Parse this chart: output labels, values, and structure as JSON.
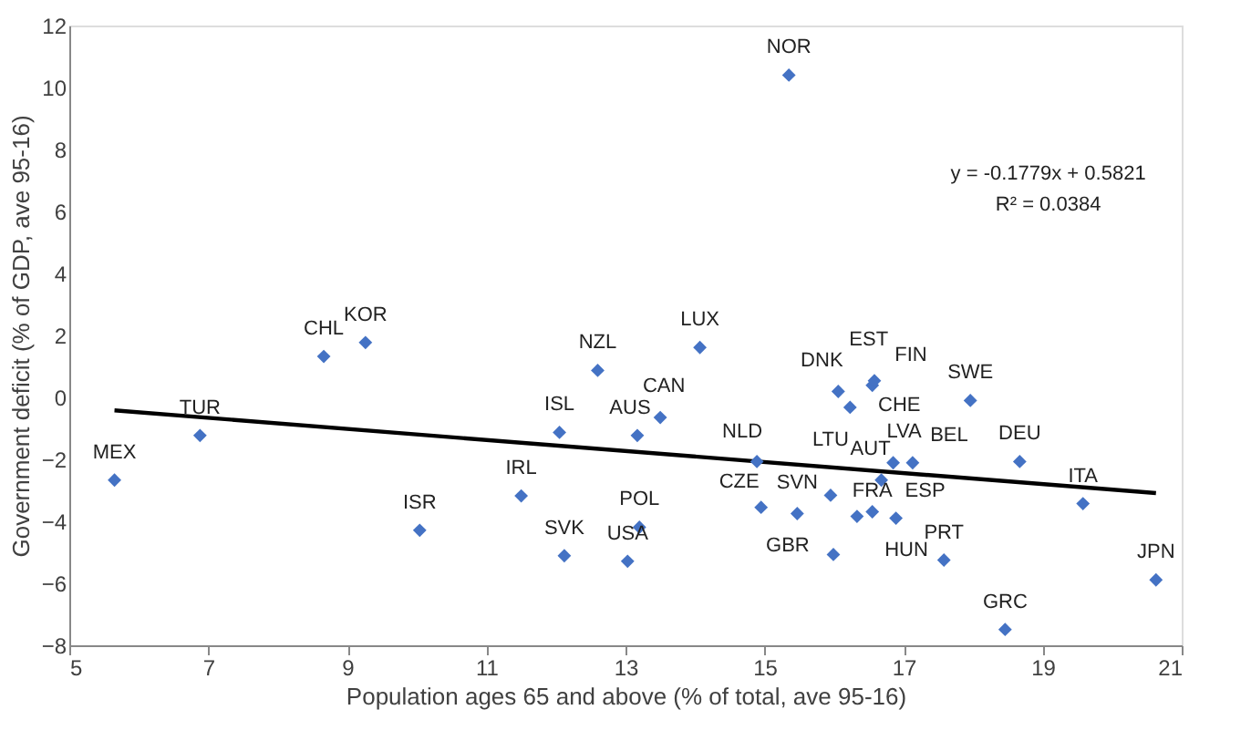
{
  "chart_data": {
    "type": "scatter",
    "xlabel": "Population ages 65 and above (% of total, ave 95-16)",
    "ylabel": "Government deficit (% of GDP, ave 95-16)",
    "xlim": [
      5,
      21
    ],
    "xticks": [
      5,
      7,
      9,
      11,
      13,
      15,
      17,
      19,
      21
    ],
    "ylim": [
      -8,
      12
    ],
    "yticks": [
      -8,
      -6,
      -4,
      -2,
      0,
      2,
      4,
      6,
      8,
      10,
      12
    ],
    "grid": false,
    "series": [
      {
        "type": "scatter",
        "color": "#4472c4",
        "marker": "diamond",
        "x": [
          5.65,
          6.88,
          8.66,
          9.26,
          10.04,
          11.5,
          12.05,
          12.6,
          12.12,
          13.03,
          13.17,
          13.2,
          14.07,
          13.5,
          14.89,
          14.95,
          15.47,
          15.95,
          15.99,
          16.33,
          16.55,
          16.06,
          16.23,
          16.55,
          16.58,
          17.96,
          16.85,
          16.68,
          17.13,
          16.89,
          17.58,
          18.46,
          18.67,
          19.58,
          20.63,
          15.35
        ],
        "values": [
          -2.67,
          -1.23,
          1.32,
          1.77,
          -4.29,
          -3.18,
          -1.13,
          0.87,
          -5.11,
          -5.29,
          -1.23,
          -4.19,
          1.61,
          -0.65,
          -2.07,
          -3.55,
          -3.75,
          -3.16,
          -5.07,
          -3.84,
          -3.69,
          0.19,
          -0.32,
          0.39,
          0.54,
          -0.1,
          -2.11,
          -2.67,
          -2.11,
          -3.9,
          -5.25,
          -7.49,
          -2.07,
          -3.43,
          -5.89,
          10.4
        ]
      },
      {
        "type": "line",
        "color": "#000000",
        "marker": "none",
        "line_style": "solid",
        "x": [
          5.65,
          20.63
        ],
        "values": [
          -0.42,
          -3.09
        ]
      }
    ],
    "annotations": [
      {
        "text": "MEX",
        "x": 5.65,
        "y": -2.67
      },
      {
        "text": "TUR",
        "x": 6.88,
        "y": -1.23
      },
      {
        "text": "CHL",
        "x": 8.66,
        "y": 1.32
      },
      {
        "text": "KOR",
        "x": 9.26,
        "y": 1.77
      },
      {
        "text": "ISR",
        "x": 10.04,
        "y": -4.29
      },
      {
        "text": "IRL",
        "x": 11.5,
        "y": -3.18
      },
      {
        "text": "ISL",
        "x": 12.05,
        "y": -1.13
      },
      {
        "text": "NZL",
        "x": 12.6,
        "y": 0.87
      },
      {
        "text": "SVK",
        "x": 12.12,
        "y": -5.11
      },
      {
        "text": "USA",
        "x": 13.03,
        "y": -5.29
      },
      {
        "text": "AUS",
        "x": 13.17,
        "y": -1.23
      },
      {
        "text": "POL",
        "x": 13.2,
        "y": -4.19
      },
      {
        "text": "LUX",
        "x": 14.07,
        "y": 1.61
      },
      {
        "text": "CAN",
        "x": 13.5,
        "y": -0.65
      },
      {
        "text": "NLD",
        "x": 14.89,
        "y": -2.07
      },
      {
        "text": "CZE",
        "x": 14.95,
        "y": -3.55
      },
      {
        "text": "SVN",
        "x": 15.47,
        "y": -3.75
      },
      {
        "text": "LTU",
        "x": 15.95,
        "y": -3.16
      },
      {
        "text": "HUN",
        "x": 15.99,
        "y": -5.07
      },
      {
        "text": "GBR",
        "x": 16.33,
        "y": -3.84
      },
      {
        "text": "FRA",
        "x": 16.55,
        "y": -3.69
      },
      {
        "text": "DNK",
        "x": 16.06,
        "y": 0.19
      },
      {
        "text": "CHE",
        "x": 16.23,
        "y": -0.32
      },
      {
        "text": "EST",
        "x": 16.55,
        "y": 0.39
      },
      {
        "text": "FIN",
        "x": 16.58,
        "y": 0.54
      },
      {
        "text": "SWE",
        "x": 17.96,
        "y": -0.1
      },
      {
        "text": "LVA",
        "x": 16.85,
        "y": -2.11
      },
      {
        "text": "AUT",
        "x": 16.68,
        "y": -2.67
      },
      {
        "text": "BEL",
        "x": 17.13,
        "y": -2.11
      },
      {
        "text": "ESP",
        "x": 16.89,
        "y": -3.9
      },
      {
        "text": "PRT",
        "x": 17.58,
        "y": -5.25
      },
      {
        "text": "GRC",
        "x": 18.46,
        "y": -7.49
      },
      {
        "text": "DEU",
        "x": 18.67,
        "y": -2.07
      },
      {
        "text": "ITA",
        "x": 19.58,
        "y": -3.43
      },
      {
        "text": "JPN",
        "x": 20.63,
        "y": -5.89
      },
      {
        "text": "NOR",
        "x": 15.35,
        "y": 10.4
      },
      "y = -0.1779x + 0.5821",
      "R² = 0.0384"
    ]
  }
}
